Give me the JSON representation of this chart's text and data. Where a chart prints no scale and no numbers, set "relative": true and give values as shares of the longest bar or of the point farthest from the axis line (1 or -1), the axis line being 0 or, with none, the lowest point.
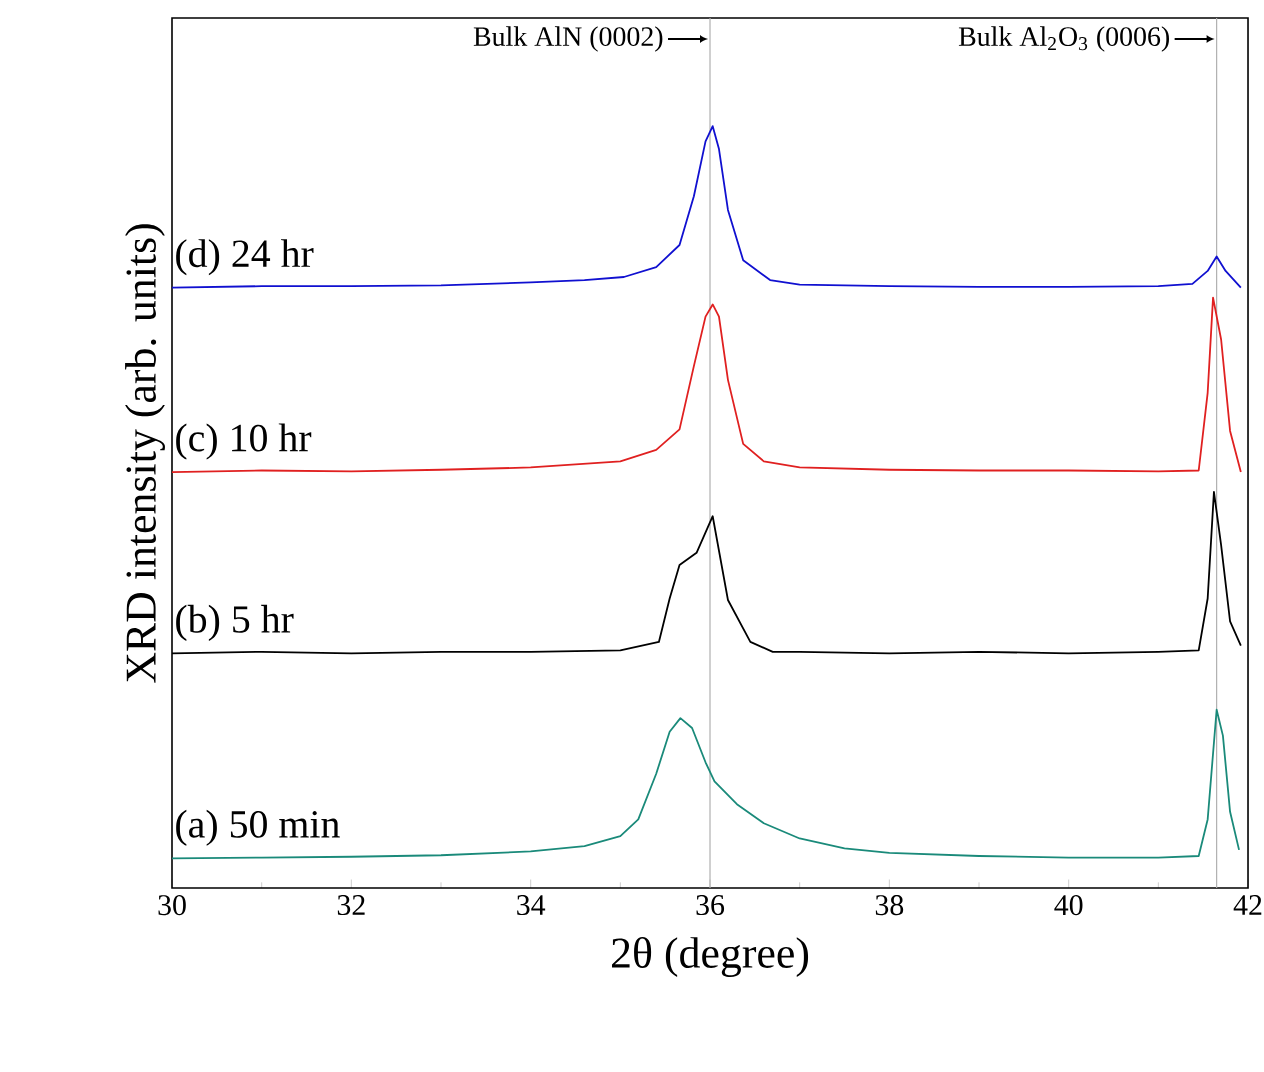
{
  "chart_data": {
    "type": "line",
    "relative": true,
    "xlabel": "2θ (degree)",
    "ylabel": "XRD intensity (arb. units)",
    "xlim": [
      30,
      42
    ],
    "xticks": [
      30,
      32,
      34,
      36,
      38,
      40,
      42
    ],
    "grid": false,
    "legend": false,
    "marker": "none",
    "line_style": "solid",
    "ref_lines": [
      {
        "axis": "x",
        "value": 36,
        "label": "Bulk AlN (0002)",
        "color": "#b0b0b0"
      },
      {
        "axis": "x",
        "value": 41.65,
        "label": "Bulk Al$_{2}$O$_{3}$ (0006)",
        "color": "#b0b0b0"
      }
    ],
    "series": [
      {
        "name": "(a) 50 min",
        "color": "#1a8a7a",
        "x": [
          30,
          31,
          32,
          33,
          34,
          34.6,
          35.0,
          35.2,
          35.4,
          35.55,
          35.67,
          35.8,
          35.95,
          36.05,
          36.3,
          36.6,
          37,
          37.5,
          38,
          39,
          40,
          41,
          41.45,
          41.55,
          41.65,
          41.72,
          41.8,
          41.9
        ],
        "values": [
          0.039,
          0.04,
          0.041,
          0.043,
          0.048,
          0.055,
          0.068,
          0.09,
          0.15,
          0.205,
          0.223,
          0.21,
          0.165,
          0.14,
          0.11,
          0.085,
          0.065,
          0.052,
          0.046,
          0.042,
          0.04,
          0.04,
          0.042,
          0.09,
          0.234,
          0.2,
          0.1,
          0.05
        ]
      },
      {
        "name": "(b) 5 hr",
        "color": "#000000",
        "x": [
          30,
          31,
          32,
          33,
          34,
          35,
          35.43,
          35.55,
          35.66,
          35.85,
          36.03,
          36.2,
          36.45,
          36.7,
          37,
          38,
          39,
          40,
          41,
          41.45,
          41.55,
          41.62,
          41.7,
          41.8,
          41.92
        ],
        "values": [
          0.308,
          0.31,
          0.308,
          0.31,
          0.31,
          0.312,
          0.323,
          0.38,
          0.424,
          0.44,
          0.488,
          0.378,
          0.323,
          0.31,
          0.31,
          0.308,
          0.31,
          0.308,
          0.31,
          0.312,
          0.38,
          0.52,
          0.45,
          0.35,
          0.318
        ]
      },
      {
        "name": "(c) 10 hr",
        "color": "#e02020",
        "x": [
          30,
          31,
          32,
          33,
          34,
          35,
          35.4,
          35.66,
          35.82,
          35.95,
          36.03,
          36.1,
          36.2,
          36.37,
          36.6,
          37,
          38,
          39,
          40,
          41,
          41.45,
          41.55,
          41.61,
          41.7,
          41.8,
          41.92
        ],
        "values": [
          0.546,
          0.548,
          0.547,
          0.549,
          0.552,
          0.56,
          0.575,
          0.602,
          0.685,
          0.75,
          0.766,
          0.75,
          0.667,
          0.583,
          0.56,
          0.552,
          0.549,
          0.548,
          0.548,
          0.547,
          0.548,
          0.65,
          0.775,
          0.72,
          0.6,
          0.546
        ]
      },
      {
        "name": "(d) 24 hr",
        "color": "#1010d0",
        "x": [
          30,
          31,
          32,
          33,
          34,
          34.6,
          35.04,
          35.4,
          35.66,
          35.82,
          35.95,
          36.03,
          36.1,
          36.2,
          36.37,
          36.67,
          37,
          38,
          39,
          40,
          41,
          41.38,
          41.55,
          41.65,
          41.75,
          41.92
        ],
        "values": [
          0.788,
          0.79,
          0.79,
          0.791,
          0.795,
          0.798,
          0.802,
          0.815,
          0.844,
          0.908,
          0.98,
          1.0,
          0.97,
          0.89,
          0.824,
          0.798,
          0.792,
          0.79,
          0.789,
          0.789,
          0.79,
          0.793,
          0.81,
          0.829,
          0.81,
          0.788
        ]
      }
    ]
  }
}
